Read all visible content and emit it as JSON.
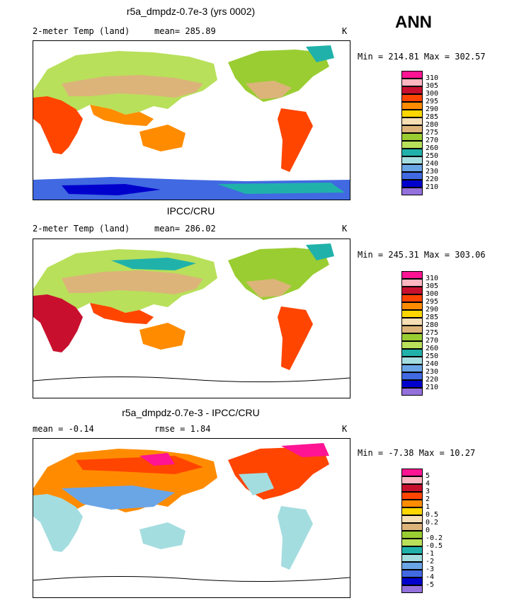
{
  "season": "ANN",
  "panels": [
    {
      "title": "r5a_dmpdz-0.7e-3 (yrs 0002)",
      "left_label": "2-meter Temp (land)",
      "mid_label": "mean= 285.89",
      "unit": "K",
      "minmax": "Min = 214.81 Max = 302.57",
      "legend": [
        "310",
        "305",
        "300",
        "295",
        "290",
        "285",
        "280",
        "275",
        "270",
        "260",
        "250",
        "240",
        "230",
        "220",
        "210"
      ],
      "colors": [
        "#ff1493",
        "#ffb6c1",
        "#c8102e",
        "#ff4500",
        "#ff8c00",
        "#ffd700",
        "#f5deb3",
        "#dcb47a",
        "#9acd32",
        "#b8e05a",
        "#20b2aa",
        "#a4dde0",
        "#6aa5e6",
        "#4169e1",
        "#0000cd",
        "#9370db"
      ]
    },
    {
      "title": "IPCC/CRU",
      "left_label": "2-meter Temp (land)",
      "mid_label": "mean= 286.02",
      "unit": "K",
      "minmax": "Min = 245.31 Max = 303.06",
      "legend": [
        "310",
        "305",
        "300",
        "295",
        "290",
        "285",
        "280",
        "275",
        "270",
        "260",
        "250",
        "240",
        "230",
        "220",
        "210"
      ],
      "colors": [
        "#ff1493",
        "#ffb6c1",
        "#c8102e",
        "#ff4500",
        "#ff8c00",
        "#ffd700",
        "#f5deb3",
        "#dcb47a",
        "#9acd32",
        "#b8e05a",
        "#20b2aa",
        "#a4dde0",
        "#6aa5e6",
        "#4169e1",
        "#0000cd",
        "#9370db"
      ]
    },
    {
      "title": "r5a_dmpdz-0.7e-3 - IPCC/CRU",
      "left_label": "mean = -0.14",
      "mid_label": "rmse = 1.84",
      "unit": "K",
      "minmax": "Min = -7.38 Max = 10.27",
      "legend": [
        "5",
        "4",
        "3",
        "2",
        "1",
        "0.5",
        "0.2",
        "0",
        "-0.2",
        "-0.5",
        "-1",
        "-2",
        "-3",
        "-4",
        "-5"
      ],
      "colors": [
        "#ff1493",
        "#ffb6c1",
        "#c8102e",
        "#ff4500",
        "#ff8c00",
        "#ffd700",
        "#f5deb3",
        "#dcb47a",
        "#9acd32",
        "#b8e05a",
        "#20b2aa",
        "#a4dde0",
        "#6aa5e6",
        "#4169e1",
        "#0000cd",
        "#9370db"
      ]
    }
  ]
}
